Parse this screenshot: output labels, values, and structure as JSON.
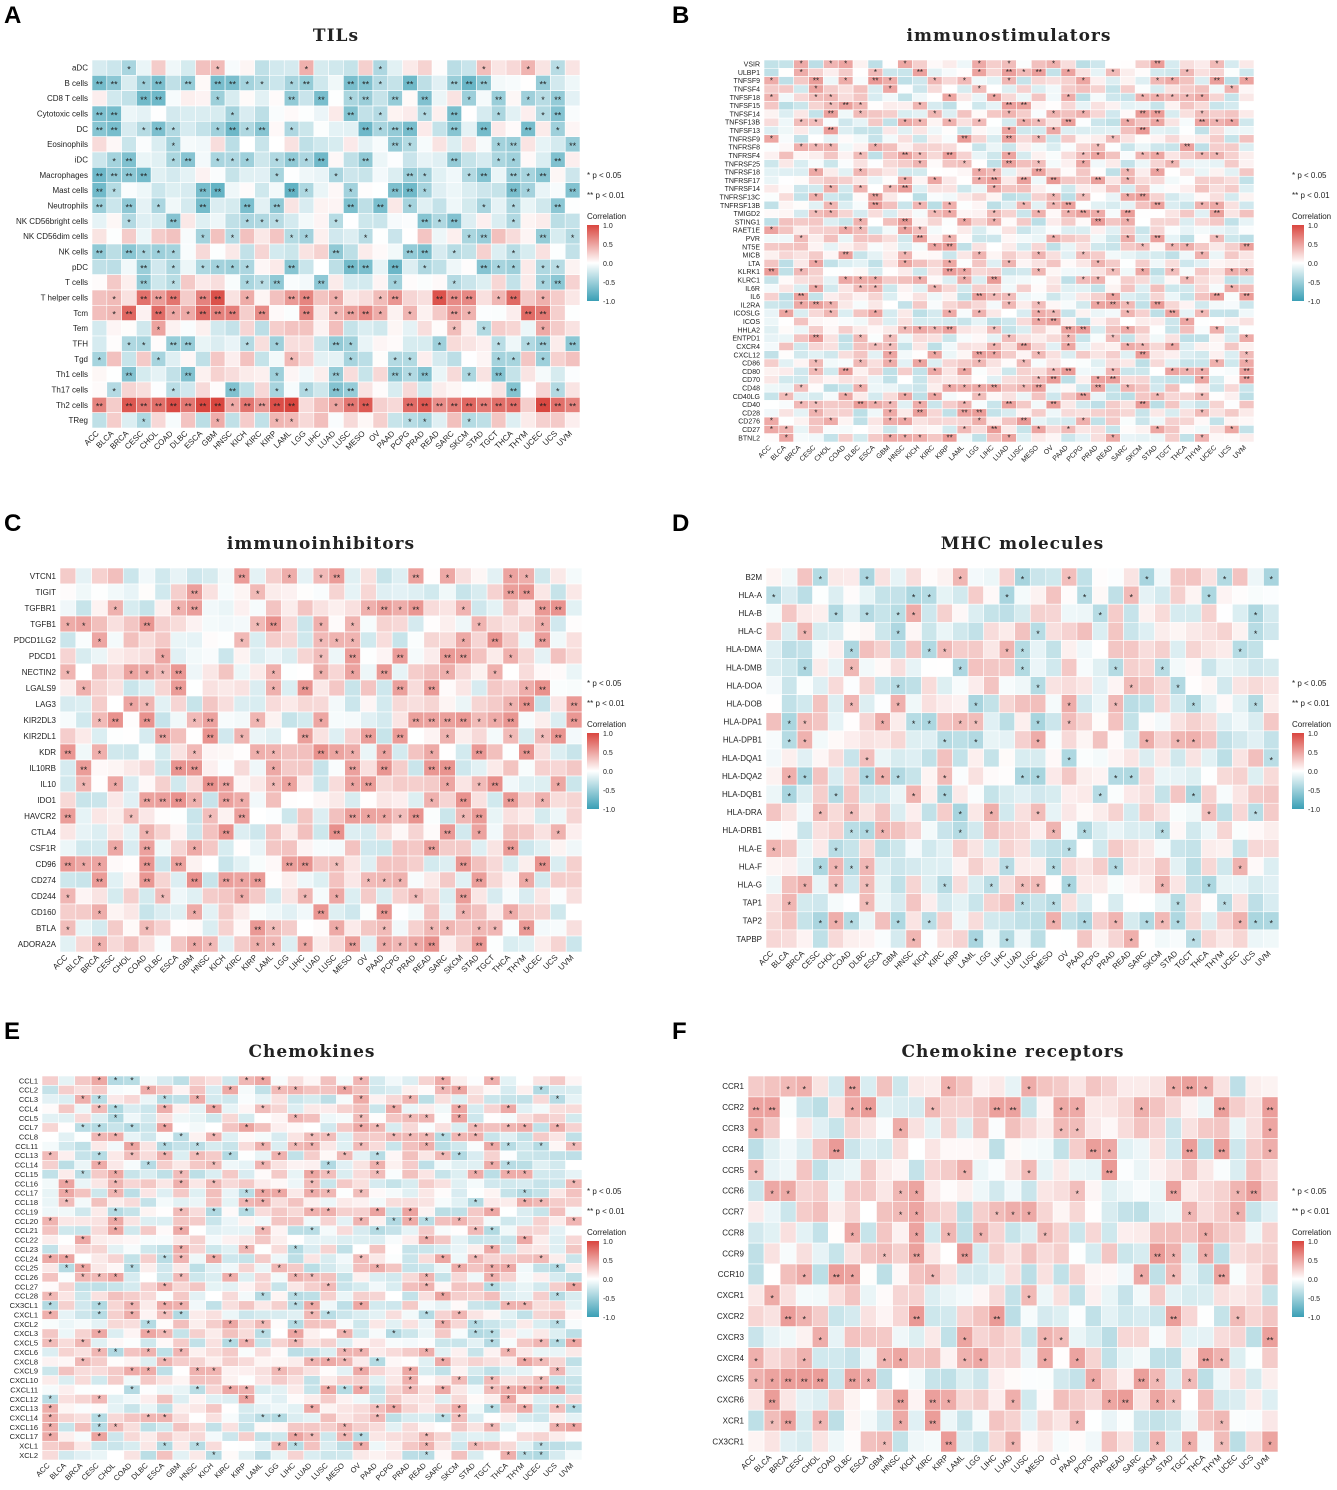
{
  "panels": [
    {
      "letter": "A",
      "title": "TILs"
    },
    {
      "letter": "B",
      "title": "immunostimulators"
    },
    {
      "letter": "C",
      "title": "immunoinhibitors"
    },
    {
      "letter": "D",
      "title": "MHC molecules"
    },
    {
      "letter": "E",
      "title": "Chemokines"
    },
    {
      "letter": "F",
      "title": "Chemokine receptors"
    }
  ],
  "legend": {
    "sig1": "* p < 0.05",
    "sig2": "** p < 0.01",
    "title": "Correlation",
    "ticks": [
      "1.0",
      "0.5",
      "0.0",
      "-0.5",
      "-1.0"
    ],
    "colors": {
      "high": "#d9463f",
      "mid": "#ffffff",
      "low": "#3a9fb5"
    }
  },
  "chart_data": [
    {
      "type": "heatmap",
      "panel": "A",
      "title": "TILs",
      "x": [
        "ACC",
        "BLCA",
        "BRCA",
        "CESC",
        "CHOL",
        "COAD",
        "DLBC",
        "ESCA",
        "GBM",
        "HNSC",
        "KICH",
        "KIRC",
        "KIRP",
        "LAML",
        "LGG",
        "LIHC",
        "LUAD",
        "LUSC",
        "MESO",
        "OV",
        "PAAD",
        "PCPG",
        "PRAD",
        "READ",
        "SARC",
        "SKCM",
        "STAD",
        "TGCT",
        "THCA",
        "THYM",
        "UCEC",
        "UCS",
        "UVM"
      ],
      "y": [
        "aDC",
        "B cells",
        "CD8 T cells",
        "Cytotoxic cells",
        "DC",
        "Eosinophils",
        "iDC",
        "Macrophages",
        "Mast cells",
        "Neutrophils",
        "NK CD56bright cells",
        "NK CD56dim cells",
        "NK cells",
        "pDC",
        "T cells",
        "T helper cells",
        "Tcm",
        "Tem",
        "TFH",
        "Tgd",
        "Th1 cells",
        "Th17 cells",
        "Th2 cells",
        "TReg"
      ],
      "row_bias": [
        0,
        -0.35,
        -0.3,
        -0.3,
        -0.3,
        -0.25,
        -0.35,
        -0.3,
        -0.35,
        -0.3,
        -0.2,
        -0.1,
        -0.2,
        -0.3,
        -0.15,
        0.5,
        0.4,
        0.05,
        -0.15,
        -0.05,
        -0.2,
        -0.2,
        0.6,
        0
      ],
      "value_range": [
        -1,
        1
      ]
    },
    {
      "type": "heatmap",
      "panel": "B",
      "title": "immunostimulators",
      "x": [
        "ACC",
        "BLCA",
        "BRCA",
        "CESC",
        "CHOL",
        "COAD",
        "DLBC",
        "ESCA",
        "GBM",
        "HNSC",
        "KICH",
        "KIRC",
        "KIRP",
        "LAML",
        "LGG",
        "LIHC",
        "LUAD",
        "LUSC",
        "MESO",
        "OV",
        "PAAD",
        "PCPG",
        "PRAD",
        "READ",
        "SARC",
        "SKCM",
        "STAD",
        "TGCT",
        "THCA",
        "THYM",
        "UCEC",
        "UCS",
        "UVM"
      ],
      "y": [
        "VSIR",
        "ULBP1",
        "TNFSF9",
        "TNFSF4",
        "TNFSF18",
        "TNFSF15",
        "TNFSF14",
        "TNFSF13B",
        "TNFSF13",
        "TNFRSF9",
        "TNFRSF8",
        "TNFRSF4",
        "TNFRSF25",
        "TNFRSF18",
        "TNFRSF17",
        "TNFRSF14",
        "TNFRSF13C",
        "TNFRSF13B",
        "TMIGD2",
        "STING1",
        "RAET1E",
        "PVR",
        "NT5E",
        "MICB",
        "LTA",
        "KLRK1",
        "KLRC1",
        "IL6R",
        "IL6",
        "IL2RA",
        "ICOSLG",
        "ICOS",
        "HHLA2",
        "ENTPD1",
        "CXCR4",
        "CXCL12",
        "CD86",
        "CD80",
        "CD70",
        "CD48",
        "CD40LG",
        "CD40",
        "CD28",
        "CD276",
        "CD27",
        "BTNL2"
      ],
      "row_bias": [
        0.1
      ],
      "value_range": [
        -1,
        1
      ]
    },
    {
      "type": "heatmap",
      "panel": "C",
      "title": "immunoinhibitors",
      "x": [
        "ACC",
        "BLCA",
        "BRCA",
        "CESC",
        "CHOL",
        "COAD",
        "DLBC",
        "ESCA",
        "GBM",
        "HNSC",
        "KICH",
        "KIRC",
        "KIRP",
        "LAML",
        "LGG",
        "LIHC",
        "LUAD",
        "LUSC",
        "MESO",
        "OV",
        "PAAD",
        "PCPG",
        "PRAD",
        "READ",
        "SARC",
        "SKCM",
        "STAD",
        "TGCT",
        "THCA",
        "THYM",
        "UCEC",
        "UCS",
        "UVM"
      ],
      "y": [
        "VTCN1",
        "TIGIT",
        "TGFBR1",
        "TGFB1",
        "PDCD1LG2",
        "PDCD1",
        "NECTIN2",
        "LGALS9",
        "LAG3",
        "KIR2DL3",
        "KIR2DL1",
        "KDR",
        "IL10RB",
        "IL10",
        "IDO1",
        "HAVCR2",
        "CTLA4",
        "CSF1R",
        "CD96",
        "CD274",
        "CD244",
        "CD160",
        "BTLA",
        "ADORA2A"
      ],
      "row_bias": [
        0.15
      ],
      "value_range": [
        -1,
        1
      ]
    },
    {
      "type": "heatmap",
      "panel": "D",
      "title": "MHC molecules",
      "x": [
        "ACC",
        "BLCA",
        "BRCA",
        "CESC",
        "CHOL",
        "COAD",
        "DLBC",
        "ESCA",
        "GBM",
        "HNSC",
        "KICH",
        "KIRC",
        "KIRP",
        "LAML",
        "LGG",
        "LIHC",
        "LUAD",
        "LUSC",
        "MESO",
        "OV",
        "PAAD",
        "PCPG",
        "PRAD",
        "READ",
        "SARC",
        "SKCM",
        "STAD",
        "TGCT",
        "THCA",
        "THYM",
        "UCEC",
        "UCS",
        "UVM"
      ],
      "y": [
        "B2M",
        "HLA-A",
        "HLA-B",
        "HLA-C",
        "HLA-DMA",
        "HLA-DMB",
        "HLA-DOA",
        "HLA-DOB",
        "HLA-DPA1",
        "HLA-DPB1",
        "HLA-DQA1",
        "HLA-DQA2",
        "HLA-DQB1",
        "HLA-DRA",
        "HLA-DRB1",
        "HLA-E",
        "HLA-F",
        "HLA-G",
        "TAP1",
        "TAP2",
        "TAPBP"
      ],
      "row_bias": [
        0
      ],
      "value_range": [
        -1,
        1
      ]
    },
    {
      "type": "heatmap",
      "panel": "E",
      "title": "Chemokines",
      "x": [
        "ACC",
        "BLCA",
        "BRCA",
        "CESC",
        "CHOL",
        "COAD",
        "DLBC",
        "ESCA",
        "GBM",
        "HNSC",
        "KICH",
        "KIRC",
        "KIRP",
        "LAML",
        "LGG",
        "LIHC",
        "LUAD",
        "LUSC",
        "MESO",
        "OV",
        "PAAD",
        "PCPG",
        "PRAD",
        "READ",
        "SARC",
        "SKCM",
        "STAD",
        "TGCT",
        "THCA",
        "THYM",
        "UCEC",
        "UCS",
        "UVM"
      ],
      "y": [
        "CCL1",
        "CCL2",
        "CCL3",
        "CCL4",
        "CCL5",
        "CCL7",
        "CCL8",
        "CCL11",
        "CCL13",
        "CCL14",
        "CCL15",
        "CCL16",
        "CCL17",
        "CCL18",
        "CCL19",
        "CCL20",
        "CCL21",
        "CCL22",
        "CCL23",
        "CCL24",
        "CCL25",
        "CCL26",
        "CCL27",
        "CCL28",
        "CX3CL1",
        "CXCL1",
        "CXCL2",
        "CXCL3",
        "CXCL5",
        "CXCL6",
        "CXCL8",
        "CXCL9",
        "CXCL10",
        "CXCL11",
        "CXCL12",
        "CXCL13",
        "CXCL14",
        "CXCL16",
        "CXCL17",
        "XCL1",
        "XCL2"
      ],
      "row_bias": [
        0.05
      ],
      "value_range": [
        -1,
        1
      ]
    },
    {
      "type": "heatmap",
      "panel": "F",
      "title": "Chemokine receptors",
      "x": [
        "ACC",
        "BLCA",
        "BRCA",
        "CESC",
        "CHOL",
        "COAD",
        "DLBC",
        "ESCA",
        "GBM",
        "HNSC",
        "KICH",
        "KIRC",
        "KIRP",
        "LAML",
        "LGG",
        "LIHC",
        "LUAD",
        "LUSC",
        "MESO",
        "OV",
        "PAAD",
        "PCPG",
        "PRAD",
        "READ",
        "SARC",
        "SKCM",
        "STAD",
        "TGCT",
        "THCA",
        "THYM",
        "UCEC",
        "UCS",
        "UVM"
      ],
      "y": [
        "CCR1",
        "CCR2",
        "CCR3",
        "CCR4",
        "CCR5",
        "CCR6",
        "CCR7",
        "CCR8",
        "CCR9",
        "CCR10",
        "CXCR1",
        "CXCR2",
        "CXCR3",
        "CXCR4",
        "CXCR5",
        "CXCR6",
        "XCR1",
        "CX3CR1"
      ],
      "row_bias": [
        0.1
      ],
      "value_range": [
        -1,
        1
      ]
    }
  ]
}
